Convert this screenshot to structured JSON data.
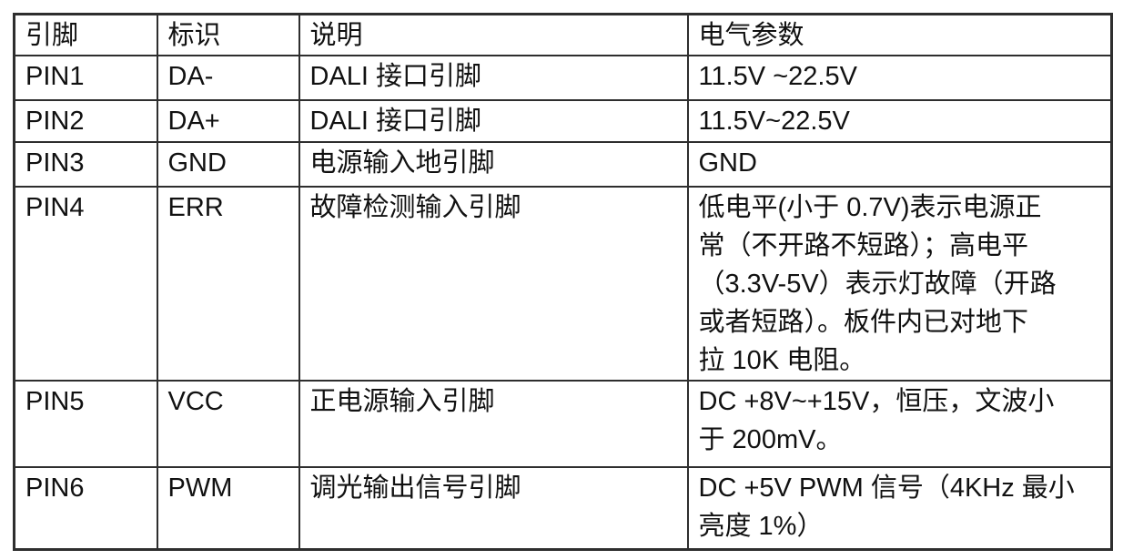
{
  "table": {
    "headers": [
      "引脚",
      "标识",
      "说明",
      "电气参数"
    ],
    "rows": [
      {
        "pin": "PIN1",
        "mark": "DA-",
        "desc": "DALI 接口引脚",
        "params": "11.5V ~22.5V"
      },
      {
        "pin": "PIN2",
        "mark": "DA+",
        "desc": "DALI 接口引脚",
        "params": "11.5V~22.5V"
      },
      {
        "pin": "PIN3",
        "mark": "GND",
        "desc": "电源输入地引脚",
        "params": "GND"
      },
      {
        "pin": "PIN4",
        "mark": "ERR",
        "desc": "故障检测输入引脚",
        "params": "低电平(小于 0.7V)表示电源正\n常（不开路不短路）；高电平\n（3.3V-5V）表示灯故障（开路\n或者短路）。板件内已对地下\n拉 10K 电阻。"
      },
      {
        "pin": "PIN5",
        "mark": "VCC",
        "desc": "正电源输入引脚",
        "params": "DC +8V~+15V，恒压，文波小\n于 200mV。"
      },
      {
        "pin": "PIN6",
        "mark": "PWM",
        "desc": "调光输出信号引脚",
        "params": "DC +5V PWM 信号（4KHz 最小\n亮度 1%）"
      }
    ],
    "border_color": "#2e2e2e",
    "text_color": "#111111",
    "background_color": "#ffffff"
  }
}
